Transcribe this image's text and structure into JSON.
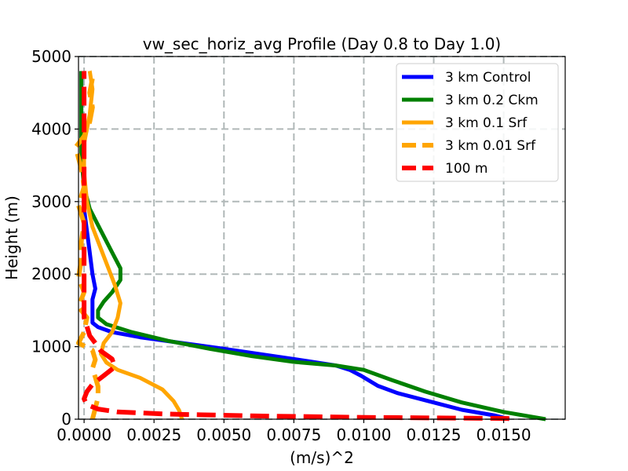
{
  "chart_data": {
    "type": "line",
    "title": "vw_sec_horiz_avg Profile (Day 0.8 to Day 1.0)",
    "xlabel": "(m/s)^2",
    "ylabel": "Height (m)",
    "xlim": [
      -0.0002,
      0.0172
    ],
    "ylim": [
      0,
      5000
    ],
    "xticks": [
      0.0,
      0.0025,
      0.005,
      0.0075,
      0.01,
      0.0125,
      0.015
    ],
    "xtick_labels": [
      "0.0000",
      "0.0025",
      "0.0050",
      "0.0075",
      "0.0100",
      "0.0125",
      "0.0150"
    ],
    "yticks": [
      0,
      1000,
      2000,
      3000,
      4000,
      5000
    ],
    "ytick_labels": [
      "0",
      "1000",
      "2000",
      "3000",
      "4000",
      "5000"
    ],
    "grid": true,
    "legend_position": "upper right",
    "series": [
      {
        "name": "3 km Control",
        "color": "#0000ff",
        "style": "solid",
        "points": [
          [
            0.0152,
            0
          ],
          [
            0.0147,
            50
          ],
          [
            0.0135,
            130
          ],
          [
            0.0124,
            240
          ],
          [
            0.0112,
            360
          ],
          [
            0.0105,
            460
          ],
          [
            0.0099,
            600
          ],
          [
            0.0095,
            680
          ],
          [
            0.009,
            740
          ],
          [
            0.008,
            800
          ],
          [
            0.0066,
            880
          ],
          [
            0.005,
            970
          ],
          [
            0.0035,
            1050
          ],
          [
            0.002,
            1130
          ],
          [
            0.001,
            1200
          ],
          [
            0.0005,
            1270
          ],
          [
            0.0003,
            1330
          ],
          [
            0.0003,
            1420
          ],
          [
            0.0003,
            1550
          ],
          [
            0.0003,
            1650
          ],
          [
            0.0004,
            1800
          ],
          [
            0.0003,
            2000
          ],
          [
            0.0002,
            2300
          ],
          [
            0.0001,
            2600
          ],
          [
            0.0,
            2900
          ],
          [
            0.0,
            3300
          ],
          [
            -0.0001,
            3800
          ],
          [
            -0.0001,
            4300
          ],
          [
            -0.0001,
            4800
          ]
        ]
      },
      {
        "name": "3 km 0.2 Ckm",
        "color": "#008000",
        "style": "solid",
        "points": [
          [
            0.0165,
            0
          ],
          [
            0.015,
            100
          ],
          [
            0.0135,
            230
          ],
          [
            0.0122,
            380
          ],
          [
            0.011,
            540
          ],
          [
            0.01,
            680
          ],
          [
            0.009,
            740
          ],
          [
            0.0075,
            790
          ],
          [
            0.006,
            870
          ],
          [
            0.0045,
            970
          ],
          [
            0.003,
            1080
          ],
          [
            0.0017,
            1200
          ],
          [
            0.0008,
            1310
          ],
          [
            0.0005,
            1400
          ],
          [
            0.0005,
            1500
          ],
          [
            0.0007,
            1620
          ],
          [
            0.001,
            1750
          ],
          [
            0.0013,
            1920
          ],
          [
            0.0013,
            2080
          ],
          [
            0.001,
            2300
          ],
          [
            0.0006,
            2600
          ],
          [
            0.0002,
            2900
          ],
          [
            0.0,
            3200
          ],
          [
            -0.0001,
            3600
          ],
          [
            -0.0001,
            4200
          ],
          [
            -0.0001,
            4800
          ]
        ]
      },
      {
        "name": "3 km 0.1 Srf",
        "color": "#ffa500",
        "style": "solid",
        "points": [
          [
            0.0035,
            0
          ],
          [
            0.0034,
            120
          ],
          [
            0.0032,
            250
          ],
          [
            0.0028,
            410
          ],
          [
            0.002,
            570
          ],
          [
            0.0012,
            680
          ],
          [
            0.0008,
            780
          ],
          [
            0.0006,
            900
          ],
          [
            0.0007,
            1050
          ],
          [
            0.001,
            1200
          ],
          [
            0.0012,
            1400
          ],
          [
            0.0013,
            1600
          ],
          [
            0.0011,
            1850
          ],
          [
            0.0009,
            2050
          ],
          [
            0.0006,
            2350
          ],
          [
            0.0003,
            2650
          ],
          [
            0.0001,
            3000
          ],
          [
            0.0,
            3400
          ],
          [
            0.0,
            3800
          ],
          [
            0.0002,
            4200
          ],
          [
            0.0003,
            4550
          ],
          [
            0.0002,
            4800
          ]
        ]
      },
      {
        "name": "3 km 0.01 Srf",
        "color": "#ffa500",
        "style": "dashed",
        "points": [
          [
            0.0003,
            0
          ],
          [
            0.0004,
            150
          ],
          [
            0.0005,
            300
          ],
          [
            0.0005,
            450
          ],
          [
            0.0004,
            580
          ],
          [
            0.0003,
            700
          ],
          [
            0.0004,
            820
          ],
          [
            0.0003,
            950
          ],
          [
            -0.0002,
            1050
          ],
          [
            0.0,
            1200
          ],
          [
            0.0001,
            1400
          ],
          [
            -0.0002,
            1550
          ],
          [
            0.0,
            1750
          ],
          [
            -0.0002,
            1950
          ],
          [
            -0.0001,
            2200
          ],
          [
            -0.0001,
            2450
          ],
          [
            0.0,
            2700
          ],
          [
            -0.0002,
            2950
          ],
          [
            0.0,
            3200
          ],
          [
            -0.0001,
            3450
          ],
          [
            -0.0003,
            3750
          ],
          [
            0.0,
            3900
          ],
          [
            0.0002,
            4100
          ],
          [
            0.0003,
            4300
          ],
          [
            0.0002,
            4500
          ],
          [
            0.0003,
            4700
          ],
          [
            0.0002,
            4800
          ]
        ]
      },
      {
        "name": "100 m",
        "color": "#ff0000",
        "style": "dashed",
        "points": [
          [
            0.0152,
            10
          ],
          [
            0.01,
            25
          ],
          [
            0.006,
            45
          ],
          [
            0.003,
            70
          ],
          [
            0.0012,
            100
          ],
          [
            0.0005,
            140
          ],
          [
            0.0001,
            200
          ],
          [
            0.0,
            280
          ],
          [
            0.0001,
            380
          ],
          [
            0.0003,
            480
          ],
          [
            0.0007,
            600
          ],
          [
            0.0011,
            720
          ],
          [
            0.001,
            830
          ],
          [
            0.0006,
            940
          ],
          [
            0.0004,
            1050
          ],
          [
            0.0002,
            1150
          ],
          [
            0.0001,
            1280
          ],
          [
            0.0,
            1400
          ],
          [
            0.0,
            1700
          ],
          [
            0.0,
            2200
          ],
          [
            0.0,
            2700
          ],
          [
            0.0,
            3300
          ],
          [
            0.0,
            3800
          ],
          [
            0.0,
            4300
          ],
          [
            0.0,
            4800
          ]
        ]
      }
    ]
  }
}
